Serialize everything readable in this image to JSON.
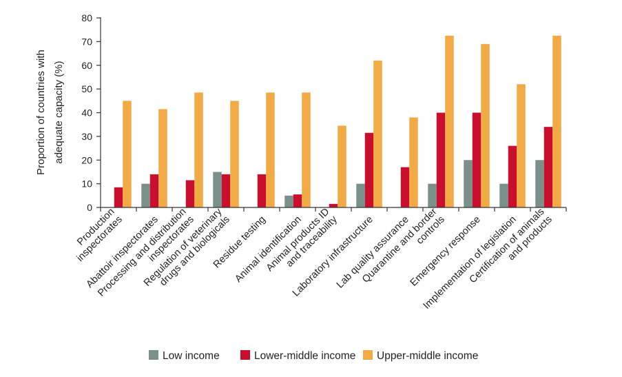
{
  "chart_data": {
    "type": "bar",
    "title": "",
    "xlabel": "",
    "ylabel": "Proportion of countries with adequate capacity (%)",
    "ylabel_lines": [
      "Proportion of countries with",
      "adequate capacity (%)"
    ],
    "ylim": [
      0,
      80
    ],
    "yticks": [
      0,
      10,
      20,
      30,
      40,
      50,
      60,
      70,
      80
    ],
    "grid": false,
    "legend_position": "bottom",
    "categories": [
      "Production inspectorates",
      "Abattoir inspectorates",
      "Processing and distribution inspectorates",
      "Regulation of veterinary drugs and biologicals",
      "Residue testing",
      "Animal identification",
      "Animal products ID and traceability",
      "Laboratory infrastructure",
      "Lab quality assurance",
      "Quarantine and border controls",
      "Emergency response",
      "Implementation of legislation",
      "Certification of animals and products"
    ],
    "category_label_lines": [
      [
        "Production",
        "inspectorates"
      ],
      [
        "Abattoir inspectorates"
      ],
      [
        "Processing and distribution",
        "inspectorates"
      ],
      [
        "Regulation of veterinary",
        "drugs and biologicals"
      ],
      [
        "Residue testing"
      ],
      [
        "Animal identification"
      ],
      [
        "Animal products ID",
        "and traceability"
      ],
      [
        "Laboratory infrastructure"
      ],
      [
        "Lab quality assurance"
      ],
      [
        "Quarantine and border",
        "controls"
      ],
      [
        "Emergency response"
      ],
      [
        "Implementation of legislation"
      ],
      [
        "Certification of animals",
        "and products"
      ]
    ],
    "series": [
      {
        "name": "Low income",
        "color": "#7a908a",
        "values": [
          0,
          10,
          0,
          15,
          0,
          5,
          0,
          10,
          0,
          10,
          20,
          10,
          20
        ]
      },
      {
        "name": "Lower-middle income",
        "color": "#c8102e",
        "values": [
          8.5,
          14,
          11.5,
          14,
          14,
          5.5,
          1.5,
          31.5,
          17,
          40,
          40,
          26,
          34
        ]
      },
      {
        "name": "Upper-middle income",
        "color": "#f2aa45",
        "values": [
          45,
          41.5,
          48.5,
          45,
          48.5,
          48.5,
          34.5,
          62,
          38,
          72.5,
          69,
          52,
          72.5
        ]
      }
    ]
  }
}
